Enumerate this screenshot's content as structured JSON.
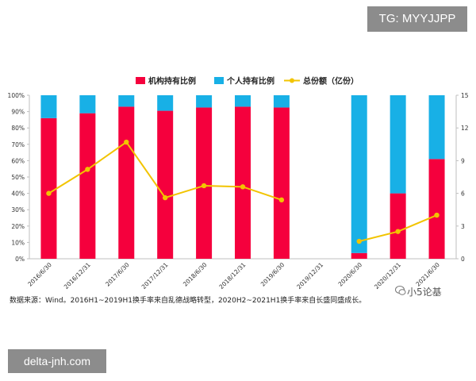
{
  "badges": {
    "top": "TG: MYYJJPP",
    "bottom": "delta-jnh.com"
  },
  "watermark": "小5论基",
  "source_note": "数据来源：Wind。2016H1~2019H1换手率来自乱德战略转型，2020H2~2021H1换手率来自长盛同盛成长。",
  "colors": {
    "institution": "#f5003d",
    "individual": "#18b0e6",
    "total": "#f2c400"
  },
  "chart_data": {
    "type": "bar",
    "categories": [
      "2016/6/30",
      "2016/12/31",
      "2017/6/30",
      "2017/12/31",
      "2018/6/30",
      "2018/12/31",
      "2019/6/30",
      "2019/12/31",
      "2020/6/30",
      "2020/12/31",
      "2021/6/30"
    ],
    "series": [
      {
        "name": "机构持有比例",
        "type": "stacked-bar",
        "axis": "left",
        "values": [
          0.86,
          0.89,
          0.93,
          0.905,
          0.925,
          0.93,
          0.925,
          null,
          0.035,
          0.4,
          0.61
        ]
      },
      {
        "name": "个人持有比例",
        "type": "stacked-bar",
        "axis": "left",
        "values": [
          0.14,
          0.11,
          0.07,
          0.095,
          0.075,
          0.07,
          0.075,
          null,
          0.965,
          0.6,
          0.39
        ]
      },
      {
        "name": "总份额（亿份）",
        "type": "line",
        "axis": "right",
        "values": [
          6.0,
          8.2,
          10.7,
          5.6,
          6.7,
          6.6,
          5.4,
          null,
          1.6,
          2.5,
          4.0
        ]
      }
    ],
    "y_left": {
      "ticks": [
        "0%",
        "10%",
        "20%",
        "30%",
        "40%",
        "50%",
        "60%",
        "70%",
        "80%",
        "90%",
        "100%"
      ],
      "lim": [
        0,
        1
      ]
    },
    "y_right": {
      "ticks": [
        "0",
        "3",
        "6",
        "9",
        "12",
        "15"
      ],
      "lim": [
        0,
        15
      ]
    },
    "legend": "top-center",
    "grid": false
  }
}
